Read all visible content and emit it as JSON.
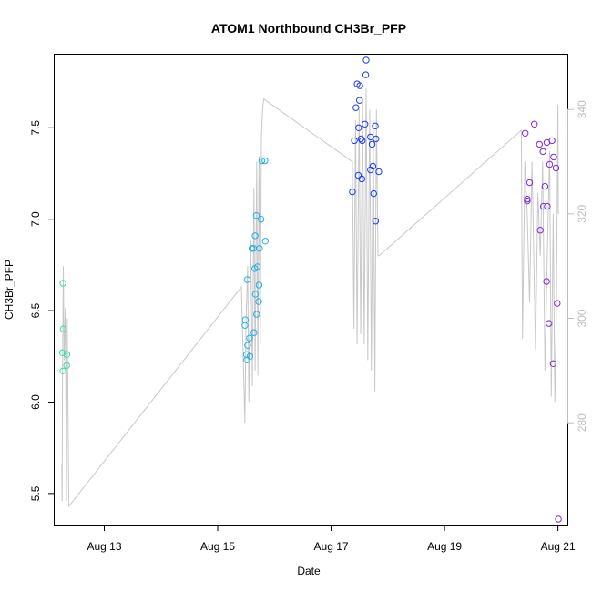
{
  "chart_data": {
    "type": "scatter",
    "title": "ATOM1 Northbound CH3Br_PFP",
    "xlabel": "Date",
    "ylabel": "CH3Br_PFP",
    "x_axis_type": "date",
    "xlim": [
      "2016-08-12 03:00",
      "2016-08-21 04:00"
    ],
    "ylim": [
      5.33,
      7.9
    ],
    "y_ticks": [
      5.5,
      6.0,
      6.5,
      7.0,
      7.5
    ],
    "y_tick_labels": [
      "5.5",
      "6.0",
      "6.5",
      "7.0",
      "7.5"
    ],
    "x_ticks": [
      "2016-08-13",
      "2016-08-15",
      "2016-08-17",
      "2016-08-19",
      "2016-08-21"
    ],
    "x_tick_labels": [
      "Aug 13",
      "Aug 15",
      "Aug 17",
      "Aug 19",
      "Aug 21"
    ],
    "grid": false,
    "legend": "none",
    "right_axis": {
      "ylim": [
        260.5,
        350.5
      ],
      "ticks": [
        280,
        300,
        320,
        340
      ],
      "tick_labels": [
        "280",
        "300",
        "320",
        "340"
      ],
      "color": "#bdbdbd"
    },
    "colors": {
      "points_low": "#33e0a0",
      "points_mid": "#1fb0e8",
      "points_high": "#1c3ff0",
      "points_late": "#7b2be0",
      "altitude_line": "#c8c8c8"
    },
    "series": [
      {
        "points": [
          [
            "2016-08-12 06:30",
            6.65
          ],
          [
            "2016-08-12 06:40",
            6.4
          ],
          [
            "2016-08-12 06:20",
            6.27
          ],
          [
            "2016-08-12 06:30",
            6.17
          ],
          [
            "2016-08-12 08:10",
            6.26
          ],
          [
            "2016-08-12 08:05",
            6.2
          ],
          [
            "2016-08-15 12:30",
            6.67
          ],
          [
            "2016-08-15 11:40",
            6.45
          ],
          [
            "2016-08-15 11:30",
            6.42
          ],
          [
            "2016-08-15 12:40",
            6.31
          ],
          [
            "2016-08-15 13:30",
            6.35
          ],
          [
            "2016-08-15 12:10",
            6.26
          ],
          [
            "2016-08-15 12:20",
            6.23
          ],
          [
            "2016-08-15 13:40",
            6.25
          ],
          [
            "2016-08-15 15:20",
            6.38
          ],
          [
            "2016-08-15 16:30",
            6.48
          ],
          [
            "2016-08-15 16:00",
            6.59
          ],
          [
            "2016-08-15 17:30",
            6.64
          ],
          [
            "2016-08-15 17:20",
            6.55
          ],
          [
            "2016-08-15 15:40",
            6.73
          ],
          [
            "2016-08-15 16:50",
            6.74
          ],
          [
            "2016-08-15 14:30",
            6.84
          ],
          [
            "2016-08-15 15:10",
            6.84
          ],
          [
            "2016-08-15 17:40",
            6.84
          ],
          [
            "2016-08-15 15:50",
            6.91
          ],
          [
            "2016-08-15 16:20",
            7.02
          ],
          [
            "2016-08-15 18:20",
            7.0
          ],
          [
            "2016-08-15 20:10",
            6.88
          ],
          [
            "2016-08-15 18:40",
            7.32
          ],
          [
            "2016-08-15 20:00",
            7.32
          ],
          [
            "2016-08-17 09:00",
            7.15
          ],
          [
            "2016-08-17 09:50",
            7.43
          ],
          [
            "2016-08-17 10:30",
            7.61
          ],
          [
            "2016-08-17 11:40",
            7.5
          ],
          [
            "2016-08-17 12:00",
            7.65
          ],
          [
            "2016-08-17 11:00",
            7.74
          ],
          [
            "2016-08-17 12:10",
            7.73
          ],
          [
            "2016-08-17 14:50",
            7.87
          ],
          [
            "2016-08-17 14:40",
            7.79
          ],
          [
            "2016-08-17 14:20",
            7.52
          ],
          [
            "2016-08-17 12:40",
            7.44
          ],
          [
            "2016-08-17 13:10",
            7.43
          ],
          [
            "2016-08-17 16:40",
            7.45
          ],
          [
            "2016-08-17 18:40",
            7.51
          ],
          [
            "2016-08-17 19:00",
            7.44
          ],
          [
            "2016-08-17 17:20",
            7.41
          ],
          [
            "2016-08-17 11:30",
            7.24
          ],
          [
            "2016-08-17 13:00",
            7.22
          ],
          [
            "2016-08-17 16:40",
            7.27
          ],
          [
            "2016-08-17 17:40",
            7.29
          ],
          [
            "2016-08-17 20:10",
            7.26
          ],
          [
            "2016-08-17 18:00",
            7.14
          ],
          [
            "2016-08-17 18:50",
            6.99
          ],
          [
            "2016-08-20 10:10",
            7.47
          ],
          [
            "2016-08-20 14:00",
            7.52
          ],
          [
            "2016-08-20 16:10",
            7.41
          ],
          [
            "2016-08-20 17:40",
            7.37
          ],
          [
            "2016-08-20 19:20",
            7.42
          ],
          [
            "2016-08-20 21:30",
            7.43
          ],
          [
            "2016-08-20 22:10",
            7.34
          ],
          [
            "2016-08-20 20:30",
            7.3
          ],
          [
            "2016-08-20 23:10",
            7.28
          ],
          [
            "2016-08-20 12:00",
            7.2
          ],
          [
            "2016-08-20 18:30",
            7.18
          ],
          [
            "2016-08-20 11:00",
            7.11
          ],
          [
            "2016-08-20 11:00",
            7.1
          ],
          [
            "2016-08-20 17:50",
            7.07
          ],
          [
            "2016-08-20 19:30",
            7.07
          ],
          [
            "2016-08-20 16:30",
            6.94
          ],
          [
            "2016-08-20 19:10",
            6.66
          ],
          [
            "2016-08-20 23:40",
            6.54
          ],
          [
            "2016-08-20 20:10",
            6.43
          ],
          [
            "2016-08-20 22:00",
            6.21
          ],
          [
            "2016-08-21 00:10",
            5.36
          ]
        ]
      }
    ]
  }
}
